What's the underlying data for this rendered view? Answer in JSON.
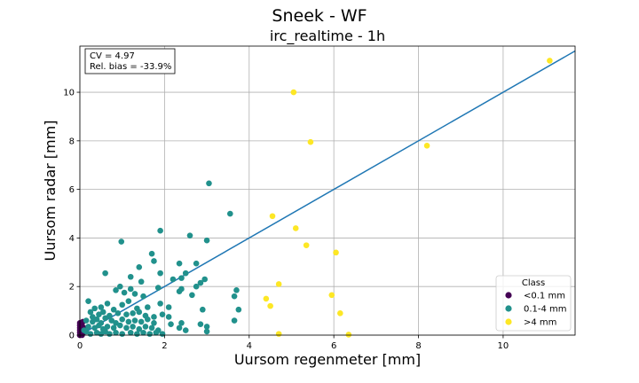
{
  "chart_data": {
    "type": "scatter",
    "suptitle": "Sneek - WF",
    "title": "irc_realtime - 1h",
    "xlabel": "Uursom regenmeter [mm]",
    "ylabel": "Uursom radar [mm]",
    "xlim": [
      0,
      11.7
    ],
    "ylim": [
      0,
      11.9
    ],
    "xticks": [
      0,
      2,
      4,
      6,
      8,
      10
    ],
    "yticks": [
      0,
      2,
      4,
      6,
      8,
      10
    ],
    "grid": true,
    "stats": {
      "line1": "CV = 4.97",
      "line2": "Rel. bias = -33.9%"
    },
    "reference_line": {
      "type": "identity",
      "color": "#1f77b4"
    },
    "legend": {
      "title": "Class",
      "placement": "lower-right"
    },
    "series": [
      {
        "name": "<0.1 mm",
        "color": "#440154",
        "points": [
          [
            0.0,
            0.0
          ],
          [
            0.0,
            0.1
          ],
          [
            0.0,
            0.2
          ],
          [
            0.0,
            0.3
          ],
          [
            0.0,
            0.4
          ],
          [
            0.0,
            0.5
          ],
          [
            0.02,
            0.05
          ],
          [
            0.03,
            0.25
          ],
          [
            0.04,
            0.45
          ],
          [
            0.05,
            0.0
          ],
          [
            0.05,
            0.15
          ],
          [
            0.06,
            0.35
          ],
          [
            0.07,
            0.55
          ],
          [
            0.08,
            0.1
          ],
          [
            0.09,
            0.3
          ]
        ]
      },
      {
        "name": "0.1-4 mm",
        "color": "#21918c",
        "points": [
          [
            3.05,
            6.25
          ],
          [
            3.55,
            5.0
          ],
          [
            0.98,
            3.85
          ],
          [
            1.9,
            4.3
          ],
          [
            2.6,
            4.1
          ],
          [
            3.0,
            3.9
          ],
          [
            1.7,
            3.35
          ],
          [
            1.75,
            3.05
          ],
          [
            1.4,
            2.8
          ],
          [
            2.35,
            2.95
          ],
          [
            2.75,
            2.95
          ],
          [
            2.5,
            2.55
          ],
          [
            0.6,
            2.55
          ],
          [
            1.2,
            2.4
          ],
          [
            1.45,
            2.2
          ],
          [
            1.9,
            2.55
          ],
          [
            2.2,
            2.3
          ],
          [
            2.4,
            2.35
          ],
          [
            2.95,
            2.3
          ],
          [
            2.85,
            2.15
          ],
          [
            2.75,
            2.0
          ],
          [
            1.2,
            1.9
          ],
          [
            1.3,
            1.7
          ],
          [
            1.5,
            1.6
          ],
          [
            1.85,
            1.95
          ],
          [
            2.35,
            1.8
          ],
          [
            2.4,
            1.9
          ],
          [
            2.65,
            1.65
          ],
          [
            3.7,
            1.85
          ],
          [
            3.65,
            1.6
          ],
          [
            0.85,
            1.85
          ],
          [
            0.95,
            2.0
          ],
          [
            1.05,
            1.75
          ],
          [
            0.2,
            1.4
          ],
          [
            0.35,
            1.1
          ],
          [
            0.5,
            1.15
          ],
          [
            0.65,
            1.3
          ],
          [
            0.8,
            1.05
          ],
          [
            1.0,
            1.25
          ],
          [
            1.15,
            1.4
          ],
          [
            1.35,
            1.1
          ],
          [
            1.6,
            1.15
          ],
          [
            1.9,
            1.3
          ],
          [
            2.1,
            1.15
          ],
          [
            2.9,
            1.05
          ],
          [
            3.75,
            1.05
          ],
          [
            0.25,
            0.95
          ],
          [
            0.45,
            0.85
          ],
          [
            0.55,
            0.95
          ],
          [
            0.7,
            0.8
          ],
          [
            0.9,
            0.9
          ],
          [
            1.1,
            0.85
          ],
          [
            1.25,
            0.9
          ],
          [
            1.4,
            0.95
          ],
          [
            1.55,
            0.8
          ],
          [
            1.75,
            0.75
          ],
          [
            1.95,
            0.85
          ],
          [
            2.1,
            0.75
          ],
          [
            3.65,
            0.6
          ],
          [
            0.15,
            0.6
          ],
          [
            0.3,
            0.55
          ],
          [
            0.4,
            0.65
          ],
          [
            0.5,
            0.5
          ],
          [
            0.6,
            0.7
          ],
          [
            0.75,
            0.6
          ],
          [
            0.85,
            0.5
          ],
          [
            1.0,
            0.65
          ],
          [
            1.15,
            0.55
          ],
          [
            1.3,
            0.6
          ],
          [
            1.45,
            0.55
          ],
          [
            1.6,
            0.65
          ],
          [
            1.75,
            0.5
          ],
          [
            2.15,
            0.45
          ],
          [
            2.4,
            0.5
          ],
          [
            2.85,
            0.45
          ],
          [
            3.0,
            0.35
          ],
          [
            0.2,
            0.35
          ],
          [
            0.35,
            0.3
          ],
          [
            0.45,
            0.4
          ],
          [
            0.55,
            0.25
          ],
          [
            0.65,
            0.35
          ],
          [
            0.8,
            0.3
          ],
          [
            0.95,
            0.4
          ],
          [
            1.1,
            0.3
          ],
          [
            1.25,
            0.35
          ],
          [
            1.4,
            0.25
          ],
          [
            1.55,
            0.35
          ],
          [
            1.7,
            0.3
          ],
          [
            1.85,
            0.2
          ],
          [
            2.35,
            0.3
          ],
          [
            2.5,
            0.2
          ],
          [
            3.0,
            0.15
          ],
          [
            0.15,
            0.15
          ],
          [
            0.25,
            0.05
          ],
          [
            0.4,
            0.1
          ],
          [
            0.5,
            0.05
          ],
          [
            0.6,
            0.15
          ],
          [
            0.7,
            0.05
          ],
          [
            0.85,
            0.1
          ],
          [
            1.0,
            0.05
          ],
          [
            1.2,
            0.1
          ],
          [
            1.35,
            0.05
          ],
          [
            1.5,
            0.1
          ],
          [
            1.65,
            0.05
          ],
          [
            1.8,
            0.1
          ],
          [
            1.95,
            0.05
          ],
          [
            0.1,
            0.2
          ],
          [
            0.3,
            0.75
          ]
        ]
      },
      {
        "name": ">4 mm",
        "color": "#fde725",
        "points": [
          [
            11.1,
            11.3
          ],
          [
            5.05,
            10.0
          ],
          [
            5.45,
            7.95
          ],
          [
            8.2,
            7.8
          ],
          [
            4.55,
            4.9
          ],
          [
            5.1,
            4.4
          ],
          [
            5.35,
            3.7
          ],
          [
            6.05,
            3.4
          ],
          [
            4.7,
            2.1
          ],
          [
            5.95,
            1.65
          ],
          [
            4.4,
            1.5
          ],
          [
            4.5,
            1.2
          ],
          [
            6.15,
            0.9
          ],
          [
            4.7,
            0.05
          ],
          [
            6.35,
            0.02
          ]
        ]
      }
    ]
  }
}
